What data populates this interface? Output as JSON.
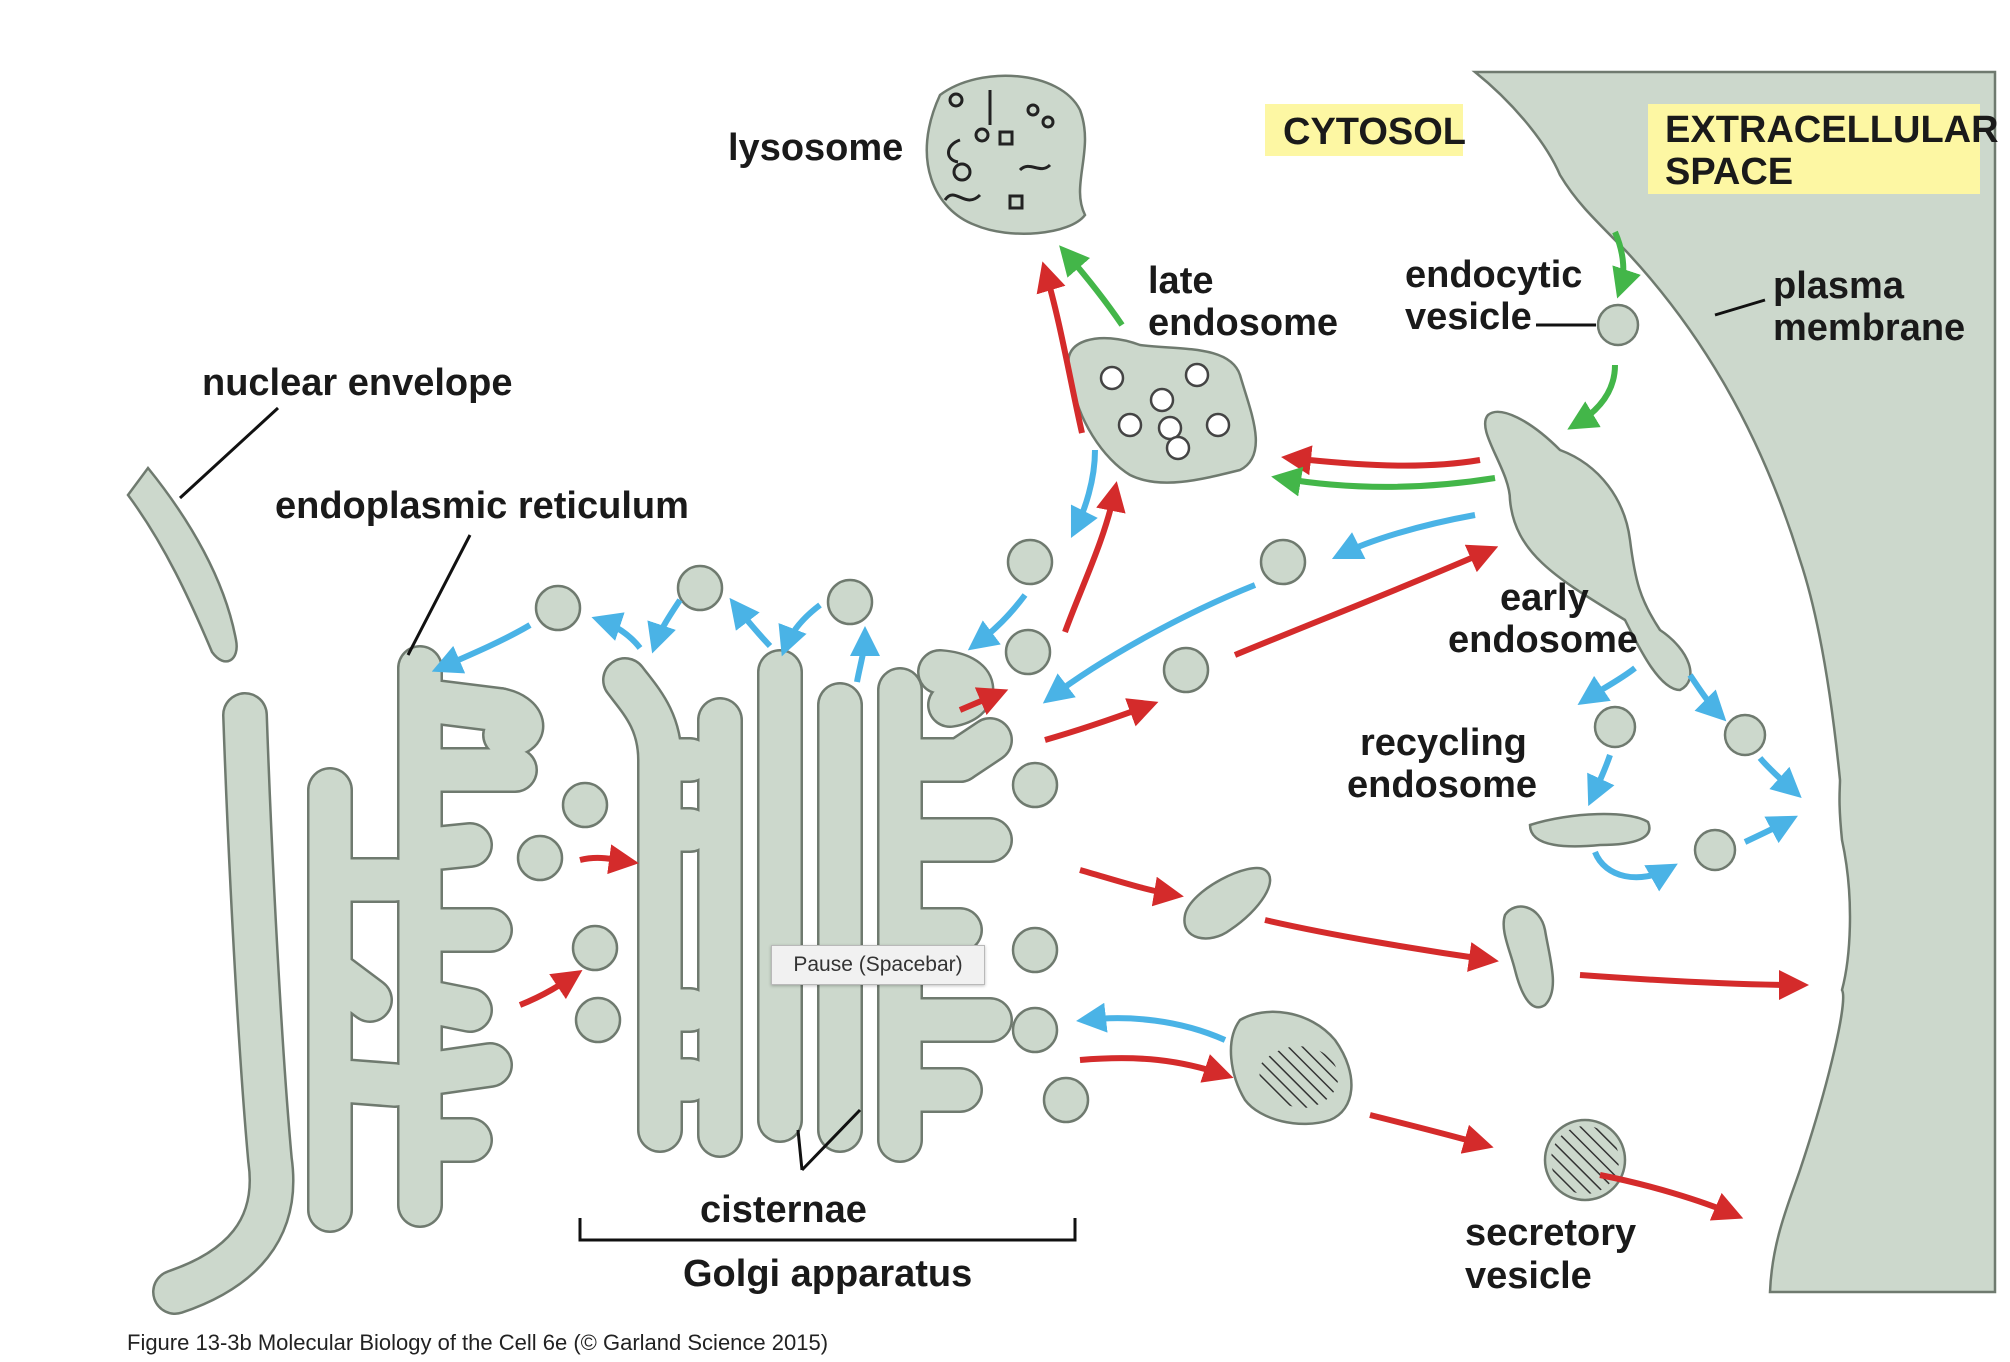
{
  "labels": {
    "lysosome": "lysosome",
    "cytosol": "CYTOSOL",
    "extracellular_line1": "EXTRACELLULAR",
    "extracellular_line2": "SPACE",
    "late_endosome_line1": "late",
    "late_endosome_line2": "endosome",
    "endocytic_vesicle_line1": "endocytic",
    "endocytic_vesicle_line2": "vesicle",
    "plasma_membrane_line1": "plasma",
    "plasma_membrane_line2": "membrane",
    "nuclear_envelope": "nuclear envelope",
    "endoplasmic_reticulum": "endoplasmic reticulum",
    "early_endosome_line1": "early",
    "early_endosome_line2": "endosome",
    "recycling_endosome_line1": "recycling",
    "recycling_endosome_line2": "endosome",
    "cisternae": "cisternae",
    "golgi_apparatus": "Golgi apparatus",
    "secretory_vesicle_line1": "secretory",
    "secretory_vesicle_line2": "vesicle"
  },
  "caption": "Figure 13-3b  Molecular Biology of the Cell 6e (© Garland Science 2015)",
  "tooltip": "Pause (Spacebar)",
  "colors": {
    "organelle_fill": "#ccd8cc",
    "organelle_stroke": "#6f7a6f",
    "red_arrow": "#d42b2b",
    "green_arrow": "#43b649",
    "blue_arrow": "#4ab3e6",
    "highlight": "#fdf7a3"
  }
}
